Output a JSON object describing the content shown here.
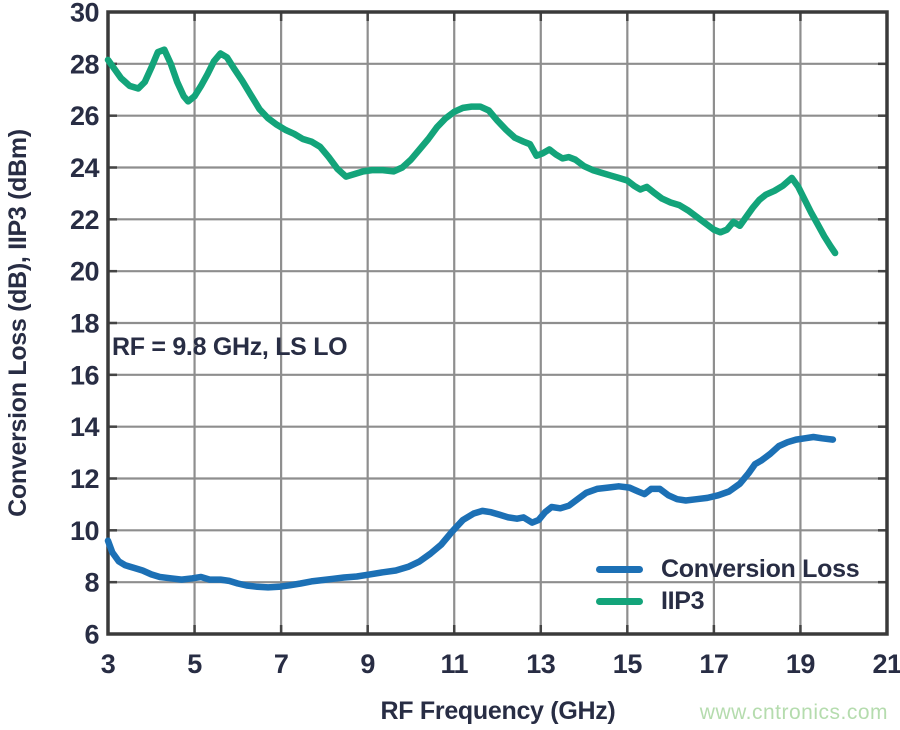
{
  "watermark": {
    "text": "www.cntronics.com",
    "color": "#b5dcae"
  },
  "styles": {
    "background": "#ffffff",
    "text_color": "#282d44",
    "grid_color": "#8e8e8e",
    "frame_color": "#3a3a3a",
    "tick_color": "#444444"
  },
  "chart_data": {
    "type": "line",
    "title": "",
    "xlabel": "RF Frequency (GHz)",
    "ylabel": "Conversion Loss (dB), IIP3 (dBm)",
    "annotation": "RF = 9.8 GHz, LS LO",
    "xlim": [
      3,
      21
    ],
    "ylim": [
      6,
      30
    ],
    "x_ticks": [
      3,
      5,
      7,
      9,
      11,
      13,
      15,
      17,
      19,
      21
    ],
    "y_ticks": [
      6,
      8,
      10,
      12,
      14,
      16,
      18,
      20,
      22,
      24,
      26,
      28,
      30
    ],
    "grid": true,
    "legend_position": "inside-bottom-right",
    "series": [
      {
        "name": "Conversion Loss",
        "color": "#1c70b5",
        "points": [
          [
            3.0,
            9.6
          ],
          [
            3.1,
            9.15
          ],
          [
            3.25,
            8.8
          ],
          [
            3.4,
            8.65
          ],
          [
            3.6,
            8.55
          ],
          [
            3.8,
            8.45
          ],
          [
            4.0,
            8.3
          ],
          [
            4.2,
            8.2
          ],
          [
            4.45,
            8.15
          ],
          [
            4.7,
            8.1
          ],
          [
            4.95,
            8.15
          ],
          [
            5.15,
            8.2
          ],
          [
            5.35,
            8.1
          ],
          [
            5.6,
            8.1
          ],
          [
            5.8,
            8.05
          ],
          [
            6.0,
            7.95
          ],
          [
            6.2,
            7.87
          ],
          [
            6.45,
            7.82
          ],
          [
            6.7,
            7.8
          ],
          [
            6.95,
            7.82
          ],
          [
            7.2,
            7.88
          ],
          [
            7.45,
            7.95
          ],
          [
            7.7,
            8.03
          ],
          [
            7.95,
            8.08
          ],
          [
            8.2,
            8.13
          ],
          [
            8.45,
            8.18
          ],
          [
            8.75,
            8.22
          ],
          [
            9.05,
            8.3
          ],
          [
            9.35,
            8.38
          ],
          [
            9.65,
            8.45
          ],
          [
            9.95,
            8.6
          ],
          [
            10.2,
            8.8
          ],
          [
            10.45,
            9.1
          ],
          [
            10.7,
            9.45
          ],
          [
            10.95,
            9.95
          ],
          [
            11.2,
            10.4
          ],
          [
            11.45,
            10.65
          ],
          [
            11.65,
            10.75
          ],
          [
            11.85,
            10.7
          ],
          [
            12.05,
            10.6
          ],
          [
            12.25,
            10.5
          ],
          [
            12.45,
            10.45
          ],
          [
            12.6,
            10.5
          ],
          [
            12.8,
            10.3
          ],
          [
            12.95,
            10.4
          ],
          [
            13.1,
            10.7
          ],
          [
            13.25,
            10.9
          ],
          [
            13.45,
            10.85
          ],
          [
            13.65,
            10.95
          ],
          [
            13.85,
            11.2
          ],
          [
            14.05,
            11.45
          ],
          [
            14.3,
            11.6
          ],
          [
            14.55,
            11.65
          ],
          [
            14.8,
            11.7
          ],
          [
            15.05,
            11.65
          ],
          [
            15.25,
            11.5
          ],
          [
            15.4,
            11.4
          ],
          [
            15.55,
            11.6
          ],
          [
            15.75,
            11.6
          ],
          [
            15.95,
            11.35
          ],
          [
            16.15,
            11.2
          ],
          [
            16.35,
            11.15
          ],
          [
            16.6,
            11.2
          ],
          [
            16.85,
            11.25
          ],
          [
            17.1,
            11.35
          ],
          [
            17.35,
            11.5
          ],
          [
            17.6,
            11.8
          ],
          [
            17.8,
            12.2
          ],
          [
            17.95,
            12.55
          ],
          [
            18.1,
            12.7
          ],
          [
            18.3,
            12.95
          ],
          [
            18.5,
            13.25
          ],
          [
            18.7,
            13.4
          ],
          [
            18.9,
            13.5
          ],
          [
            19.1,
            13.55
          ],
          [
            19.3,
            13.6
          ],
          [
            19.5,
            13.55
          ],
          [
            19.75,
            13.5
          ]
        ]
      },
      {
        "name": "IIP3",
        "color": "#13a47a",
        "points": [
          [
            3.0,
            28.15
          ],
          [
            3.15,
            27.8
          ],
          [
            3.3,
            27.45
          ],
          [
            3.5,
            27.15
          ],
          [
            3.7,
            27.05
          ],
          [
            3.85,
            27.3
          ],
          [
            4.0,
            27.85
          ],
          [
            4.15,
            28.45
          ],
          [
            4.3,
            28.55
          ],
          [
            4.45,
            28.0
          ],
          [
            4.6,
            27.3
          ],
          [
            4.75,
            26.75
          ],
          [
            4.85,
            26.55
          ],
          [
            5.0,
            26.75
          ],
          [
            5.15,
            27.15
          ],
          [
            5.3,
            27.6
          ],
          [
            5.45,
            28.1
          ],
          [
            5.6,
            28.4
          ],
          [
            5.75,
            28.25
          ],
          [
            5.9,
            27.85
          ],
          [
            6.1,
            27.35
          ],
          [
            6.3,
            26.8
          ],
          [
            6.5,
            26.25
          ],
          [
            6.7,
            25.9
          ],
          [
            6.9,
            25.65
          ],
          [
            7.1,
            25.45
          ],
          [
            7.3,
            25.3
          ],
          [
            7.5,
            25.1
          ],
          [
            7.7,
            25.0
          ],
          [
            7.9,
            24.8
          ],
          [
            8.1,
            24.4
          ],
          [
            8.3,
            23.95
          ],
          [
            8.5,
            23.65
          ],
          [
            8.7,
            23.75
          ],
          [
            8.9,
            23.85
          ],
          [
            9.1,
            23.9
          ],
          [
            9.35,
            23.9
          ],
          [
            9.6,
            23.85
          ],
          [
            9.8,
            24.0
          ],
          [
            10.0,
            24.3
          ],
          [
            10.2,
            24.7
          ],
          [
            10.4,
            25.1
          ],
          [
            10.6,
            25.55
          ],
          [
            10.8,
            25.9
          ],
          [
            11.0,
            26.15
          ],
          [
            11.2,
            26.3
          ],
          [
            11.4,
            26.35
          ],
          [
            11.6,
            26.35
          ],
          [
            11.8,
            26.2
          ],
          [
            12.0,
            25.8
          ],
          [
            12.2,
            25.45
          ],
          [
            12.4,
            25.15
          ],
          [
            12.6,
            25.0
          ],
          [
            12.75,
            24.9
          ],
          [
            12.9,
            24.45
          ],
          [
            13.05,
            24.55
          ],
          [
            13.2,
            24.7
          ],
          [
            13.35,
            24.5
          ],
          [
            13.5,
            24.35
          ],
          [
            13.65,
            24.4
          ],
          [
            13.8,
            24.3
          ],
          [
            14.0,
            24.05
          ],
          [
            14.2,
            23.9
          ],
          [
            14.4,
            23.8
          ],
          [
            14.6,
            23.7
          ],
          [
            14.8,
            23.6
          ],
          [
            15.0,
            23.5
          ],
          [
            15.15,
            23.3
          ],
          [
            15.3,
            23.15
          ],
          [
            15.45,
            23.25
          ],
          [
            15.6,
            23.05
          ],
          [
            15.8,
            22.8
          ],
          [
            16.0,
            22.65
          ],
          [
            16.2,
            22.55
          ],
          [
            16.4,
            22.35
          ],
          [
            16.6,
            22.1
          ],
          [
            16.8,
            21.85
          ],
          [
            17.0,
            21.6
          ],
          [
            17.15,
            21.5
          ],
          [
            17.3,
            21.6
          ],
          [
            17.45,
            21.9
          ],
          [
            17.6,
            21.75
          ],
          [
            17.75,
            22.1
          ],
          [
            17.9,
            22.45
          ],
          [
            18.05,
            22.75
          ],
          [
            18.2,
            22.95
          ],
          [
            18.4,
            23.1
          ],
          [
            18.6,
            23.3
          ],
          [
            18.8,
            23.6
          ],
          [
            18.95,
            23.25
          ],
          [
            19.1,
            22.75
          ],
          [
            19.25,
            22.25
          ],
          [
            19.4,
            21.8
          ],
          [
            19.55,
            21.35
          ],
          [
            19.7,
            20.95
          ],
          [
            19.8,
            20.7
          ]
        ]
      }
    ]
  }
}
